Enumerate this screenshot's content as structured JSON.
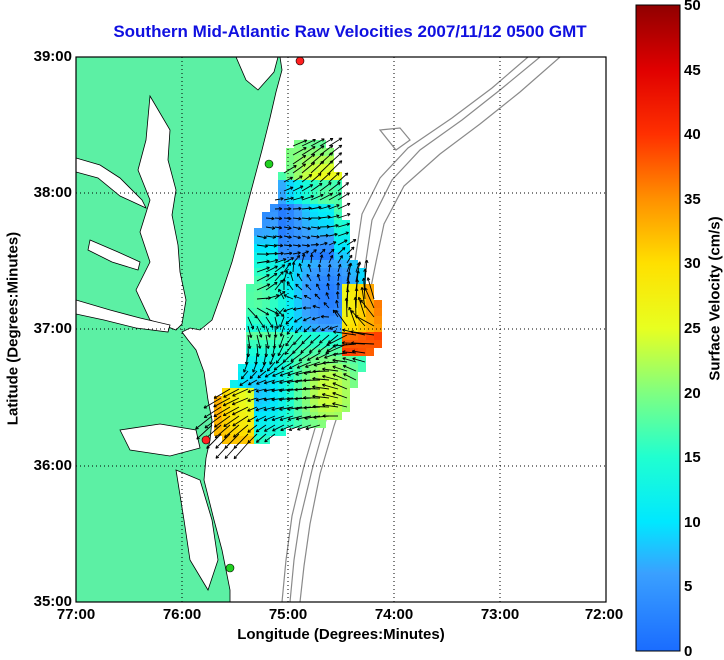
{
  "title": "Southern Mid-Atlantic Raw Velocities 2007/11/12 0500 GMT",
  "x_axis": {
    "label": "Longitude (Degrees:Minutes)",
    "ticks": [
      "77:00",
      "76:00",
      "75:00",
      "74:00",
      "73:00",
      "72:00"
    ]
  },
  "y_axis": {
    "label": "Latitude (Degrees:Minutes)",
    "ticks": [
      "39:00",
      "38:00",
      "37:00",
      "36:00",
      "35:00"
    ]
  },
  "colorbar": {
    "label": "Surface Velocity (cm/s)",
    "ticks": [
      "50",
      "45",
      "40",
      "35",
      "30",
      "25",
      "20",
      "15",
      "10",
      "5",
      "0"
    ],
    "min": 0,
    "max": 50
  },
  "colors": {
    "land": "#5cf0a4",
    "title": "#1010e0",
    "bathymetry": "#8a8a8a",
    "station_red": "#ff2020",
    "station_green": "#20d020"
  },
  "stations": [
    {
      "lon": 74.87,
      "lat": 38.96,
      "color": "red"
    },
    {
      "lon": 75.15,
      "lat": 38.22,
      "color": "green"
    },
    {
      "lon": 75.74,
      "lat": 36.18,
      "color": "red"
    },
    {
      "lon": 75.53,
      "lat": 35.25,
      "color": "green"
    }
  ]
}
